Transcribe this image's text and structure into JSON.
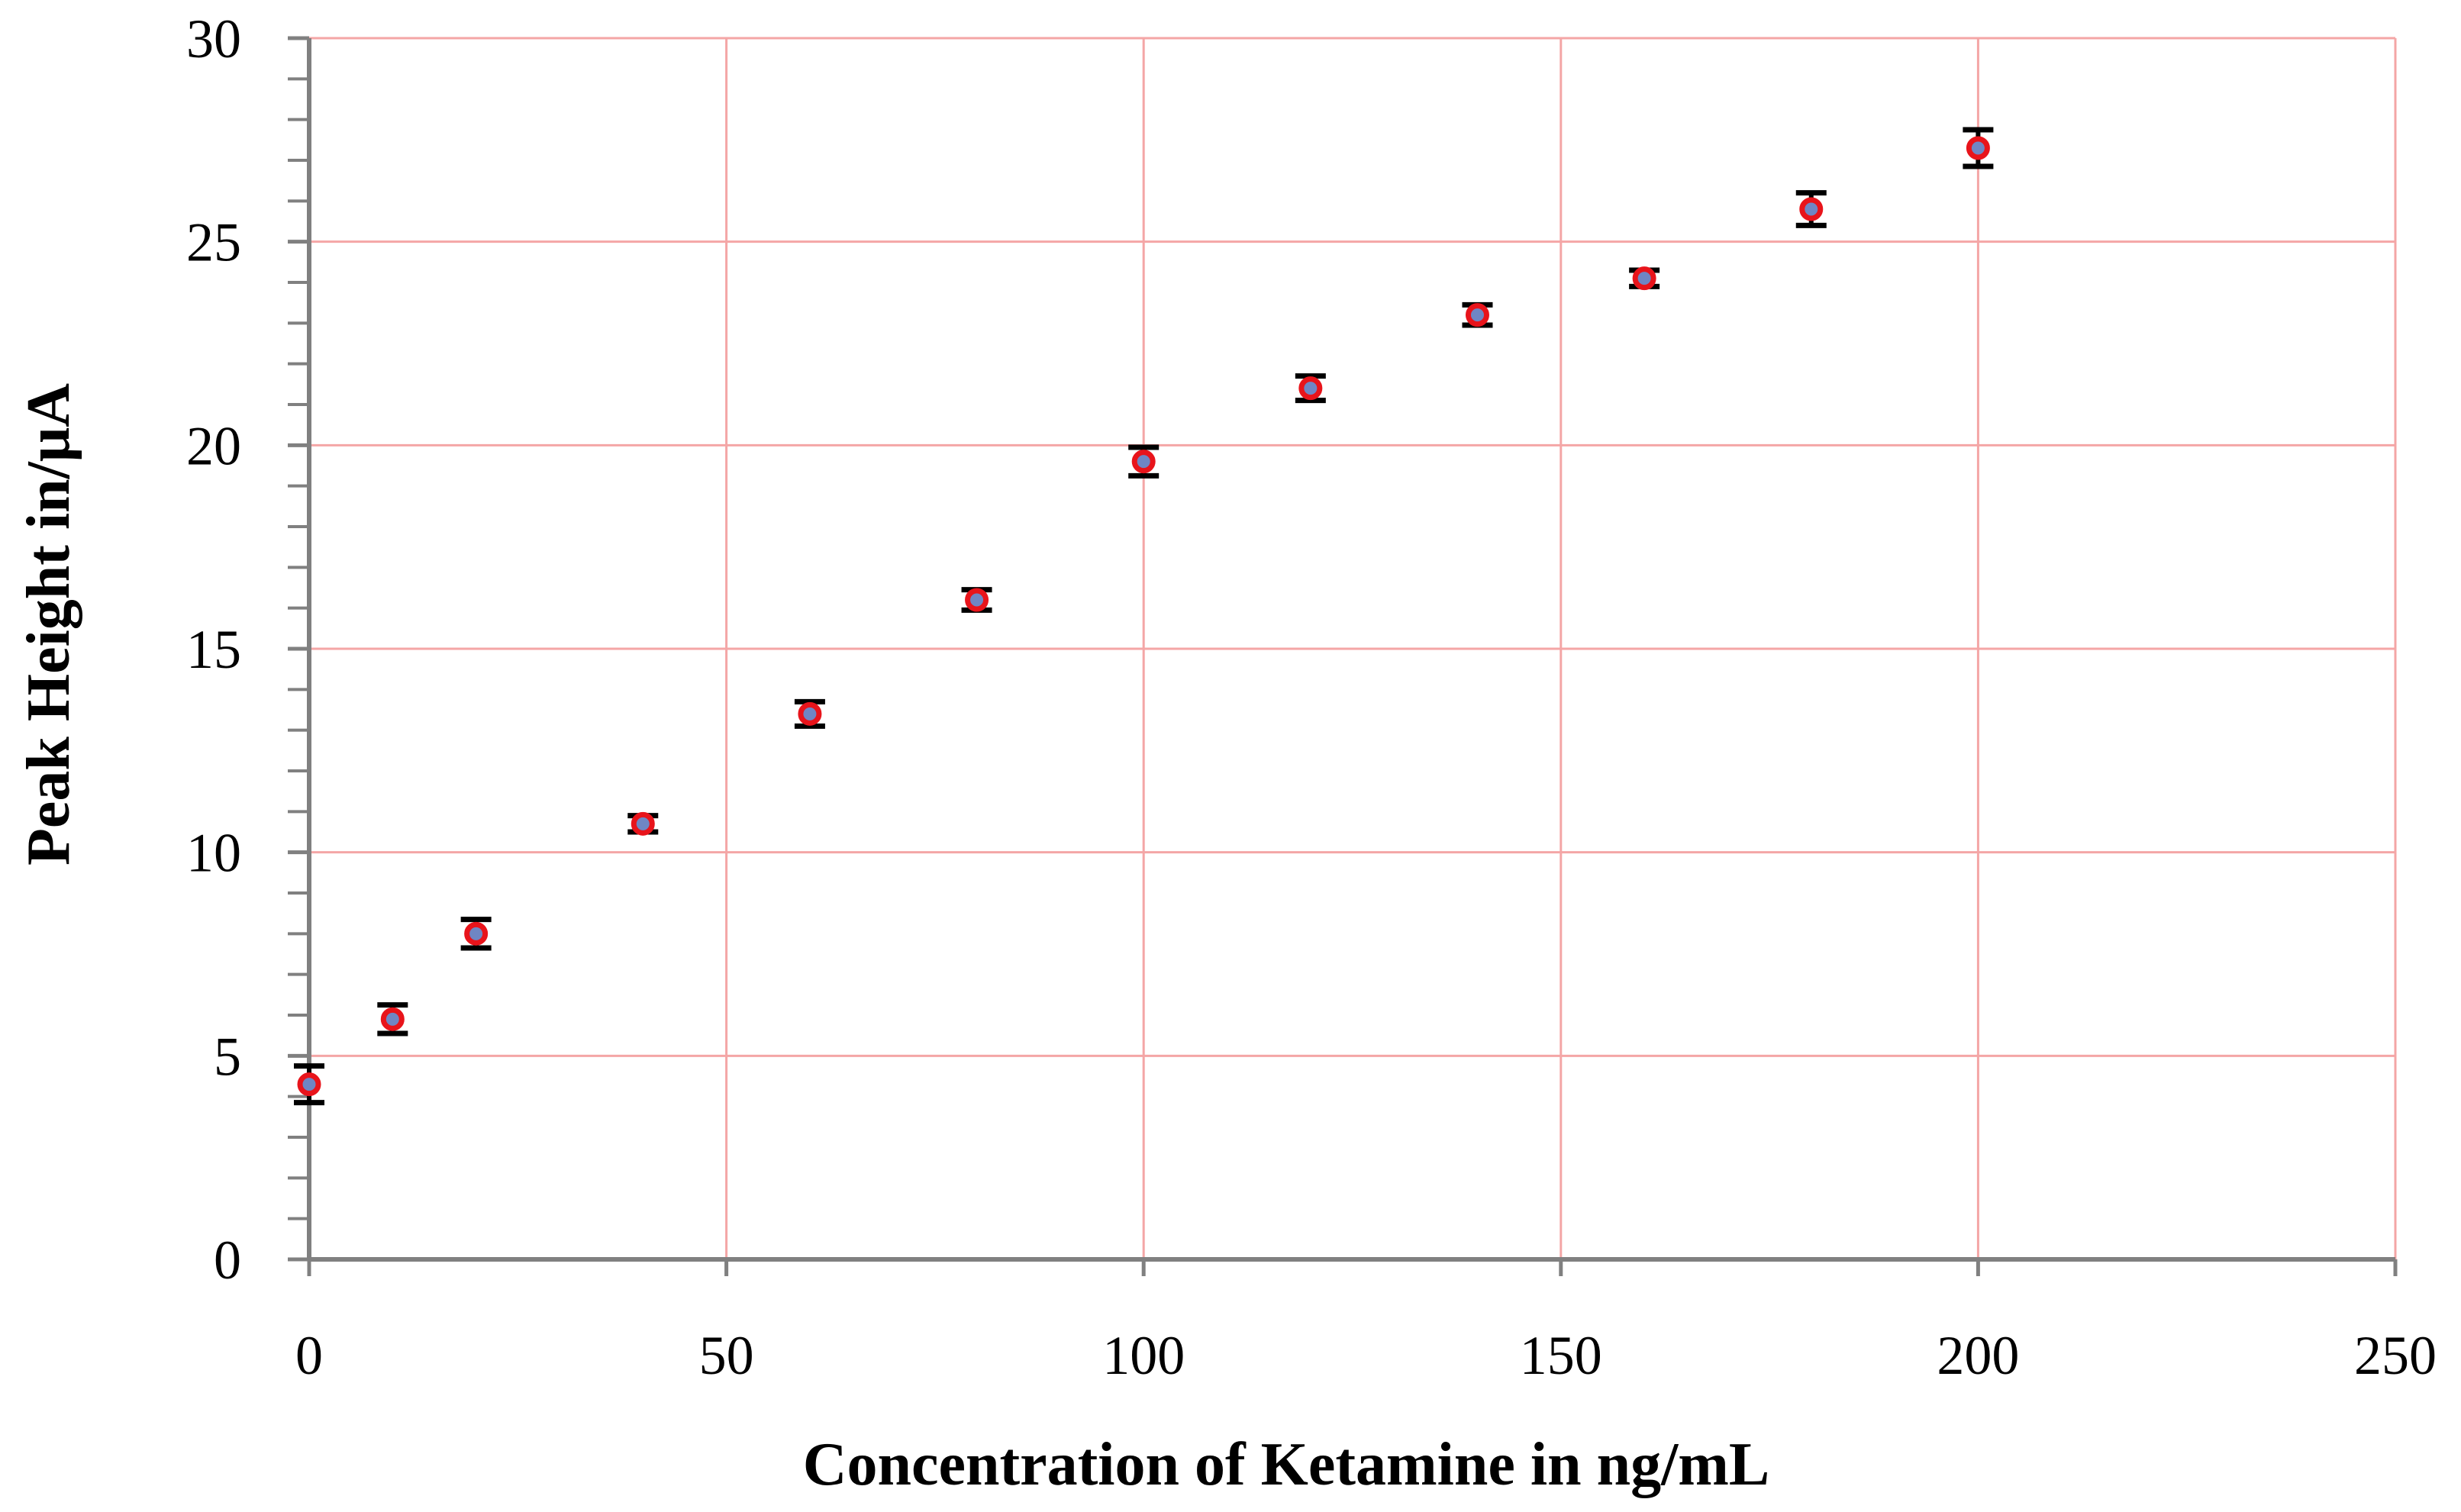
{
  "chart_data": {
    "type": "scatter",
    "title": "",
    "xlabel": "Concentration of Ketamine in ng/mL",
    "ylabel": "Peak Height in/μA",
    "xlim": [
      0,
      250
    ],
    "ylim": [
      0,
      30
    ],
    "x_ticks": [
      "0",
      "50",
      "100",
      "150",
      "200",
      "250"
    ],
    "y_ticks": [
      "0",
      "5",
      "10",
      "15",
      "20",
      "25",
      "30"
    ],
    "grid": true,
    "legend": "none",
    "colors": {
      "grid": "#f4a6a6",
      "axis": "#808080",
      "marker_edge": "#e8141b",
      "marker_fill": "#6f86c4",
      "error_bar": "#000000"
    },
    "series": [
      {
        "name": "Peak Height",
        "x": [
          0,
          10,
          20,
          40,
          60,
          80,
          100,
          120,
          140,
          160,
          180,
          200
        ],
        "y": [
          4.3,
          5.9,
          8.0,
          10.7,
          13.4,
          16.2,
          19.6,
          21.4,
          23.2,
          24.1,
          25.8,
          27.3
        ],
        "error": [
          0.45,
          0.35,
          0.35,
          0.2,
          0.3,
          0.25,
          0.35,
          0.3,
          0.25,
          0.2,
          0.4,
          0.45
        ]
      }
    ]
  }
}
